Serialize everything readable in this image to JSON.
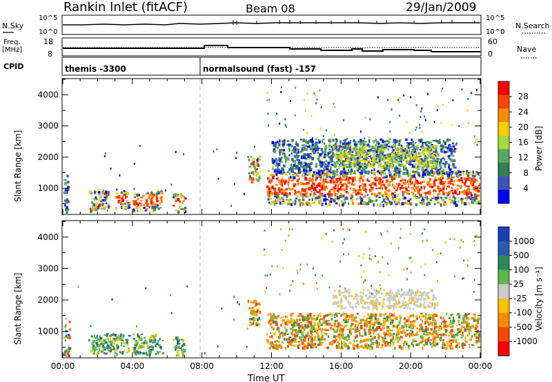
{
  "header": {
    "title": "Rankin Inlet (fitACF)",
    "beam": "Beam 08",
    "date": "29/Jan/2009"
  },
  "nsky_panel": {
    "left_label": "N.Sky",
    "left_ticks": [
      "10^5",
      "10^0"
    ],
    "right_ticks": [
      "10^5",
      "10^0"
    ],
    "right_label": "N.Search"
  },
  "freq_panel": {
    "left_label_1": "Freq.",
    "left_label_2": "[MHz]",
    "left_ticks": [
      "18",
      "8"
    ],
    "right_ticks": [
      "60",
      "0"
    ],
    "right_label": "Nave"
  },
  "cpid_panel": {
    "label": "CPID",
    "modes": [
      "themis -3300",
      "normalsound (fast) -157"
    ]
  },
  "colors": {
    "power_scale": [
      "#0000ff",
      "#3a55b8",
      "#2f7f52",
      "#5aa860",
      "#a8d83a",
      "#ffcc00",
      "#ff8c00",
      "#ff4500",
      "#ff0000"
    ],
    "velocity_scale": [
      "#1a3fb8",
      "#2a5ab0",
      "#2f8a5a",
      "#5cb84a",
      "#cccccc",
      "#ffc000",
      "#ff8c00",
      "#ff4500",
      "#ff0000"
    ]
  },
  "chart_data": [
    {
      "type": "heatmap",
      "name": "power",
      "xlabel": "",
      "ylabel": "Slant Range [km]",
      "xlim": [
        0,
        24
      ],
      "ylim": [
        180,
        4500
      ],
      "y_ticks": [
        "1000",
        "2000",
        "3000",
        "4000"
      ],
      "colorbar": {
        "label": "Power [dB]",
        "ticks": [
          "4",
          "8",
          "12",
          "16",
          "20",
          "24",
          "28"
        ],
        "range": [
          0,
          32
        ]
      },
      "echo_regions": [
        {
          "t0": 0.0,
          "t1": 0.35,
          "r0": 250,
          "r1": 1450,
          "level": "low"
        },
        {
          "t0": 1.5,
          "t1": 2.6,
          "r0": 300,
          "r1": 1000,
          "level": "mixed"
        },
        {
          "t0": 3.0,
          "t1": 3.8,
          "r0": 350,
          "r1": 950,
          "level": "high"
        },
        {
          "t0": 4.0,
          "t1": 5.2,
          "r0": 300,
          "r1": 900,
          "level": "high"
        },
        {
          "t0": 5.0,
          "t1": 5.7,
          "r0": 350,
          "r1": 950,
          "level": "high"
        },
        {
          "t0": 6.3,
          "t1": 7.0,
          "r0": 250,
          "r1": 850,
          "level": "high"
        },
        {
          "t0": 10.6,
          "t1": 11.3,
          "r0": 1200,
          "r1": 2050,
          "level": "mixed"
        },
        {
          "t0": 11.7,
          "t1": 24.0,
          "r0": 500,
          "r1": 1600,
          "level": "high"
        },
        {
          "t0": 12.0,
          "t1": 22.5,
          "r0": 1500,
          "r1": 2600,
          "level": "low"
        },
        {
          "t0": 15.5,
          "t1": 21.5,
          "r0": 1700,
          "r1": 2400,
          "level": "mid"
        }
      ]
    },
    {
      "type": "heatmap",
      "name": "velocity",
      "xlabel": "Time UT",
      "ylabel": "Slant Range [km]",
      "xlim": [
        0,
        24
      ],
      "ylim": [
        180,
        4500
      ],
      "x_ticks": [
        "00:00",
        "04:00",
        "08:00",
        "12:00",
        "16:00",
        "20:00",
        "00:00"
      ],
      "y_ticks": [
        "1000",
        "2000",
        "3000",
        "4000"
      ],
      "colorbar": {
        "label": "Velocity [m s⁻¹]",
        "ticks": [
          "1000",
          "500",
          "100",
          "25",
          "-25",
          "-100",
          "-500",
          "-1000"
        ]
      },
      "echo_regions": [
        {
          "t0": 0.0,
          "t1": 0.35,
          "r0": 250,
          "r1": 1450,
          "level": "mixed"
        },
        {
          "t0": 1.5,
          "t1": 3.8,
          "r0": 300,
          "r1": 950,
          "level": "green"
        },
        {
          "t0": 4.0,
          "t1": 5.7,
          "r0": 300,
          "r1": 950,
          "level": "green"
        },
        {
          "t0": 6.3,
          "t1": 7.0,
          "r0": 250,
          "r1": 850,
          "level": "green"
        },
        {
          "t0": 10.6,
          "t1": 11.3,
          "r0": 1200,
          "r1": 2050,
          "level": "orange"
        },
        {
          "t0": 11.7,
          "t1": 24.0,
          "r0": 500,
          "r1": 1600,
          "level": "orange"
        },
        {
          "t0": 15.5,
          "t1": 21.5,
          "r0": 1750,
          "r1": 2350,
          "level": "grey"
        }
      ]
    }
  ]
}
